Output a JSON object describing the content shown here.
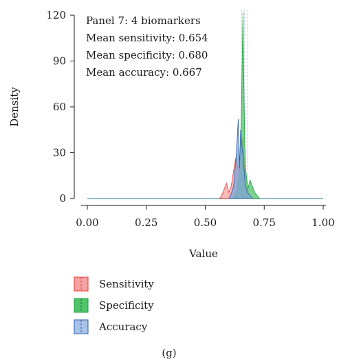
{
  "chart_data": {
    "type": "area",
    "xlabel": "Value",
    "ylabel": "Density",
    "xlim": [
      0,
      1
    ],
    "ylim": [
      0,
      120
    ],
    "x_ticks": [
      "0.00",
      "0.25",
      "0.50",
      "0.75",
      "1.00"
    ],
    "y_ticks": [
      "0",
      "30",
      "60",
      "90",
      "120"
    ],
    "annotations": [
      "Panel 7: 4 biomarkers",
      "Mean sensitivity: 0.654",
      "Mean specificity: 0.680",
      "Mean accuracy: 0.667"
    ],
    "legend_position": "bottom",
    "caption": "(g)",
    "series": [
      {
        "name": "Sensitivity",
        "color": "#e8393a",
        "fill": "#f4a3a3",
        "mean": 0.654,
        "x": [
          0.56,
          0.57,
          0.58,
          0.59,
          0.6,
          0.61,
          0.62,
          0.63,
          0.64,
          0.65,
          0.66,
          0.67,
          0.68
        ],
        "y": [
          0,
          2,
          6,
          10,
          4,
          8,
          18,
          27,
          20,
          25,
          40,
          10,
          0
        ]
      },
      {
        "name": "Specificity",
        "color": "#1e9e3c",
        "fill": "#4fc46a",
        "mean": 0.68,
        "x": [
          0.62,
          0.63,
          0.64,
          0.65,
          0.655,
          0.66,
          0.665,
          0.67,
          0.68,
          0.69,
          0.7,
          0.71,
          0.72,
          0.73
        ],
        "y": [
          0,
          3,
          10,
          30,
          75,
          122,
          60,
          22,
          6,
          12,
          8,
          4,
          2,
          0
        ]
      },
      {
        "name": "Accuracy",
        "color": "#2c5ea8",
        "fill": "#7fa6dc",
        "mean": 0.667,
        "x": [
          0.6,
          0.61,
          0.62,
          0.63,
          0.64,
          0.645,
          0.65,
          0.655,
          0.66,
          0.67,
          0.68,
          0.69,
          0.7
        ],
        "y": [
          0,
          3,
          8,
          25,
          52,
          20,
          45,
          35,
          28,
          8,
          4,
          2,
          0
        ]
      }
    ]
  }
}
